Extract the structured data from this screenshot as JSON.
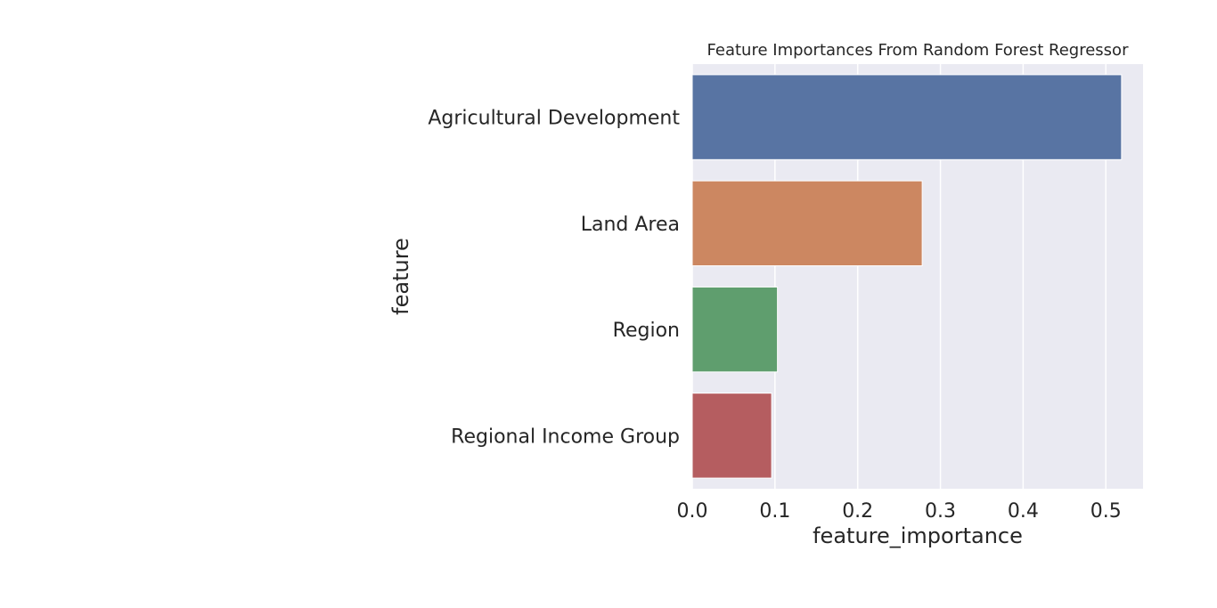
{
  "chart_data": {
    "type": "bar",
    "orientation": "horizontal",
    "title": "Feature Importances From Random Forest Regressor",
    "xlabel": "feature_importance",
    "ylabel": "feature",
    "categories": [
      "Agricultural Development",
      "Land Area",
      "Region",
      "Regional Income Group"
    ],
    "values": [
      0.519,
      0.278,
      0.103,
      0.096
    ],
    "colors": [
      "#5874a3",
      "#cc8761",
      "#5f9e6e",
      "#b55d60"
    ],
    "xlim": [
      0,
      0.545
    ],
    "xticks": [
      "0.0",
      "0.1",
      "0.2",
      "0.3",
      "0.4",
      "0.5"
    ],
    "background": "#eaeaf2",
    "grid": true,
    "legend": "none"
  }
}
